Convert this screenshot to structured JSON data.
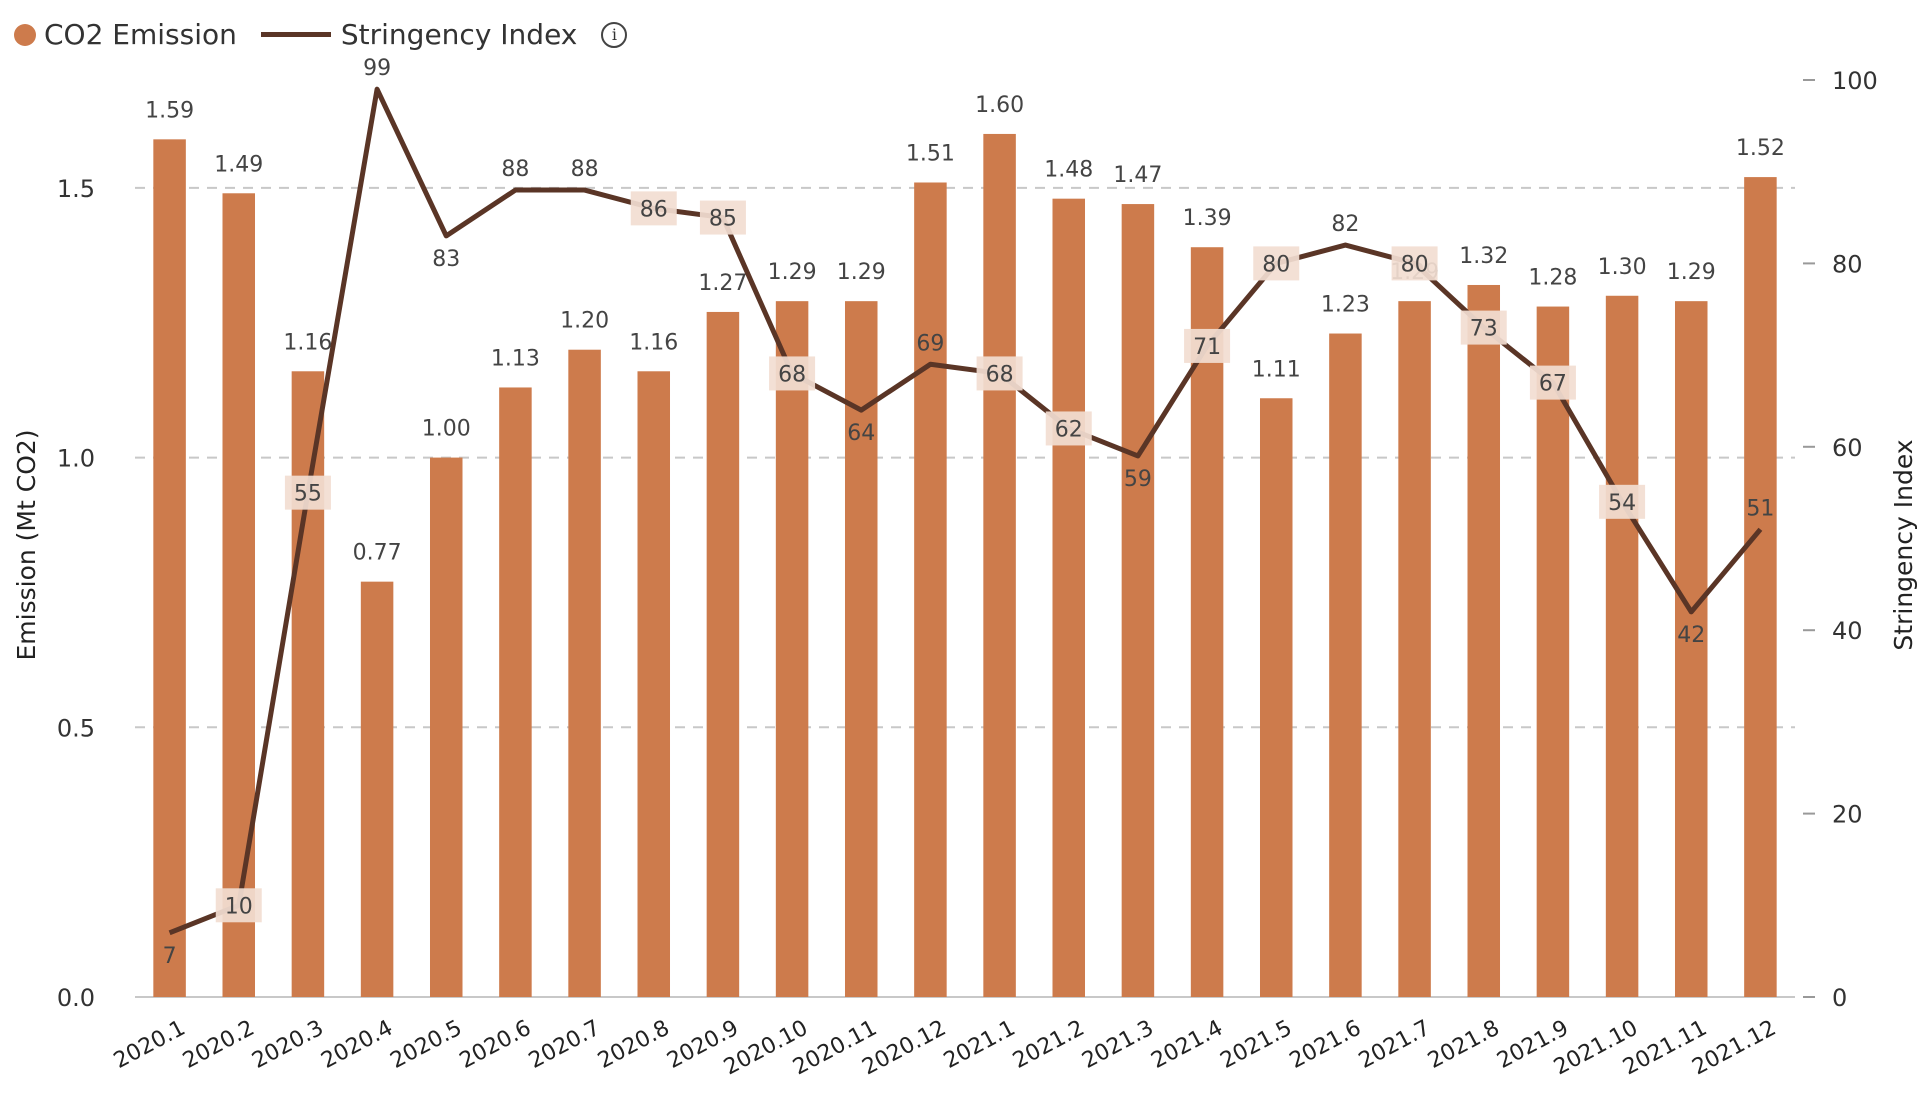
{
  "legend": {
    "bar_label": "CO2 Emission",
    "line_label": "Stringency Index",
    "info_icon": "info-icon"
  },
  "colors": {
    "bar": "#CD7B4C",
    "line": "#5A3526",
    "label_bg": "#F2DDD1",
    "grid": "#C8C8C8",
    "text": "#333333"
  },
  "chart_data": {
    "type": "bar+line",
    "categories": [
      "2020.1",
      "2020.2",
      "2020.3",
      "2020.4",
      "2020.5",
      "2020.6",
      "2020.7",
      "2020.8",
      "2020.9",
      "2020.10",
      "2020.11",
      "2020.12",
      "2021.1",
      "2021.2",
      "2021.3",
      "2021.4",
      "2021.5",
      "2021.6",
      "2021.7",
      "2021.8",
      "2021.9",
      "2021.10",
      "2021.11",
      "2021.12"
    ],
    "series": [
      {
        "name": "CO2 Emission",
        "type": "bar",
        "axis": "left",
        "values": [
          1.59,
          1.49,
          1.16,
          0.77,
          1.0,
          1.13,
          1.2,
          1.16,
          1.27,
          1.29,
          1.29,
          1.51,
          1.6,
          1.48,
          1.47,
          1.39,
          1.11,
          1.23,
          1.29,
          1.32,
          1.28,
          1.3,
          1.29,
          1.52
        ],
        "labels": [
          "1.59",
          "1.49",
          "1.16",
          "0.77",
          "1.00",
          "1.13",
          "1.20",
          "1.16",
          "1.27",
          "1.29",
          "1.29",
          "1.51",
          "1.60",
          "1.48",
          "1.47",
          "1.39",
          "1.11",
          "1.23",
          "1.29",
          "1.32",
          "1.28",
          "1.30",
          "1.29",
          "1.52"
        ]
      },
      {
        "name": "Stringency Index",
        "type": "line",
        "axis": "right",
        "values": [
          7,
          10,
          55,
          99,
          83,
          88,
          88,
          86,
          85,
          68,
          64,
          69,
          68,
          62,
          59,
          71,
          80,
          82,
          80,
          73,
          67,
          54,
          42,
          51
        ]
      }
    ],
    "ylabel": "Emission (Mt CO2)",
    "y2label": "Stringency Index",
    "ylim": [
      0,
      1.7
    ],
    "yticks": [
      0.0,
      0.5,
      1.0,
      1.5
    ],
    "ytick_labels": [
      "0.0",
      "0.5",
      "1.0",
      "1.5"
    ],
    "y2lim": [
      0,
      100
    ],
    "y2ticks": [
      0,
      20,
      40,
      60,
      80,
      100
    ],
    "grid": "horizontal dashed"
  }
}
